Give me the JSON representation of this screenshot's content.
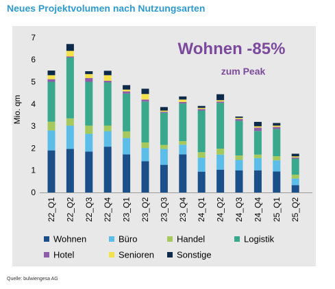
{
  "title": "Neues Projektvolumen nach Nutzungsarten",
  "source": "Quelle: bulwiengesa AG",
  "chart_data": {
    "type": "bar",
    "stacked": true,
    "title": "Neues Projektvolumen nach Nutzungsarten",
    "xlabel": "",
    "ylabel": "Mio. qm",
    "ylim": [
      0,
      7
    ],
    "yticks": [
      0,
      1,
      2,
      3,
      4,
      5,
      6,
      7
    ],
    "grid": false,
    "legend_position": "bottom",
    "categories": [
      "22_Q1",
      "22_Q2",
      "22_Q3",
      "22_Q4",
      "23_Q1",
      "23_Q2",
      "23_Q3",
      "23_Q4",
      "24_Q1",
      "24_Q2",
      "24_Q3",
      "24_Q4",
      "25_Q1",
      "25_Q2"
    ],
    "series": [
      {
        "name": "Wohnen",
        "color": "#1b4f8a",
        "values": [
          1.9,
          1.97,
          1.85,
          2.07,
          1.72,
          1.41,
          1.25,
          1.72,
          0.94,
          1.03,
          1.0,
          1.0,
          0.95,
          0.33
        ]
      },
      {
        "name": "Büro",
        "color": "#5cbde9",
        "values": [
          0.9,
          1.05,
          0.8,
          0.7,
          0.74,
          0.6,
          0.72,
          0.44,
          0.63,
          0.68,
          0.47,
          0.55,
          0.5,
          0.3
        ]
      },
      {
        "name": "Handel",
        "color": "#a6c95e",
        "values": [
          0.4,
          0.33,
          0.37,
          0.25,
          0.3,
          0.25,
          0.18,
          0.16,
          0.25,
          0.27,
          0.2,
          0.16,
          0.19,
          0.17
        ]
      },
      {
        "name": "Logistik",
        "color": "#3aa88d",
        "values": [
          1.8,
          2.75,
          1.98,
          1.95,
          1.71,
          1.85,
          1.45,
          1.7,
          1.88,
          2.07,
          1.57,
          1.07,
          1.23,
          0.73
        ]
      },
      {
        "name": "Hotel",
        "color": "#8e5fa8",
        "values": [
          0.12,
          0.05,
          0.17,
          0.08,
          0.1,
          0.09,
          0.05,
          0.07,
          0.07,
          0.06,
          0.08,
          0.15,
          0.09,
          0.05
        ]
      },
      {
        "name": "Senioren",
        "color": "#f3e24b",
        "values": [
          0.18,
          0.25,
          0.18,
          0.25,
          0.08,
          0.25,
          0.05,
          0.11,
          0.05,
          0.06,
          0.05,
          0.06,
          0.06,
          0.05
        ]
      },
      {
        "name": "Sonstige",
        "color": "#0e2a4a",
        "values": [
          0.21,
          0.31,
          0.13,
          0.2,
          0.2,
          0.24,
          0.16,
          0.14,
          0.09,
          0.27,
          0.06,
          0.2,
          0.12,
          0.12
        ]
      }
    ],
    "annotations": [
      {
        "text": "Wohnen -85%",
        "color": "#7b4a9c",
        "position": "top-right"
      },
      {
        "text": "zum Peak",
        "color": "#7b4a9c",
        "position": "top-right"
      }
    ]
  }
}
